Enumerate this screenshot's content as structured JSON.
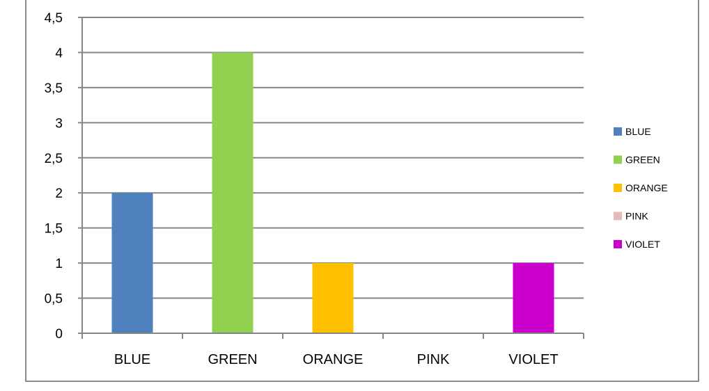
{
  "chart_data": {
    "type": "bar",
    "categories": [
      "BLUE",
      "GREEN",
      "ORANGE",
      "PINK",
      "VIOLET"
    ],
    "values": [
      2,
      4,
      1,
      0,
      1
    ],
    "colors": [
      "#4F81BD",
      "#92D050",
      "#FFC000",
      "#E6B9B8",
      "#CC00CC"
    ],
    "ylim": [
      0,
      4.5
    ],
    "y_ticks": [
      0,
      0.5,
      1,
      1.5,
      2,
      2.5,
      3,
      3.5,
      4,
      4.5
    ],
    "y_tick_labels": [
      "0",
      "0,5",
      "1",
      "1,5",
      "2",
      "2,5",
      "3",
      "3,5",
      "4",
      "4,5"
    ],
    "grid": true,
    "legend_position": "right",
    "legend": [
      "BLUE",
      "GREEN",
      "ORANGE",
      "PINK",
      "VIOLET"
    ]
  }
}
